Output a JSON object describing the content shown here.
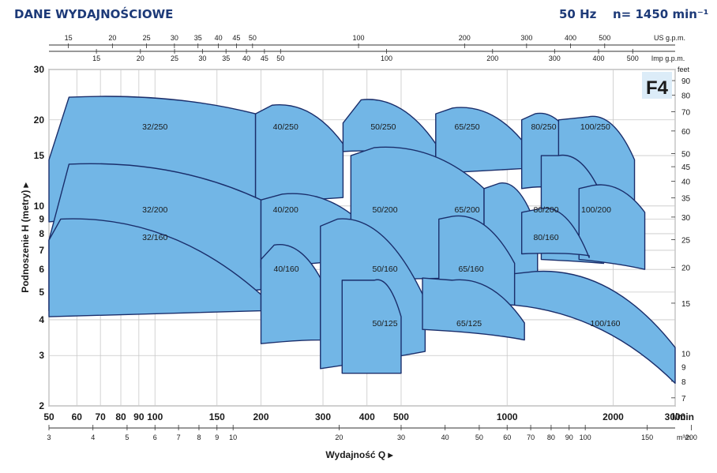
{
  "header": {
    "title": "DANE WYDAJNOŚCIOWE",
    "frequency": "50 Hz",
    "speed": "n= 1450 min⁻¹"
  },
  "chart_data": {
    "type": "area",
    "title": "F4",
    "ylabel": "Podnoszenie H (metry)",
    "xlabel": "Wydajność Q",
    "x_scale": "log",
    "y_scale": "log",
    "xlim": [
      50,
      3000
    ],
    "ylim": [
      2,
      30
    ],
    "x_unit": "l/min",
    "x_ticks": [
      50,
      60,
      70,
      80,
      90,
      100,
      150,
      200,
      300,
      400,
      500,
      1000,
      2000,
      3000
    ],
    "x_tick_labels": [
      "50",
      "60",
      "70",
      "80",
      "90",
      "100",
      "150",
      "200",
      "300",
      "400",
      "500",
      "1000",
      "2000",
      "3000"
    ],
    "y_ticks": [
      2,
      3,
      4,
      5,
      6,
      7,
      8,
      9,
      10,
      15,
      20,
      30
    ],
    "y_tick_labels": [
      "2",
      "3",
      "4",
      "5",
      "6",
      "7",
      "8",
      "9",
      "10",
      "15",
      "20",
      "30"
    ],
    "m3h_axis": {
      "unit": "m³/h",
      "ticks": [
        3,
        4,
        5,
        6,
        7,
        8,
        9,
        10,
        20,
        30,
        40,
        50,
        60,
        70,
        80,
        90,
        100,
        150,
        200
      ],
      "labels": [
        "3",
        "4",
        "5",
        "6",
        "7",
        "8",
        "9",
        "10",
        "20",
        "30",
        "40",
        "50",
        "60",
        "70",
        "80",
        "90",
        "100",
        "150",
        "200"
      ]
    },
    "us_gpm_axis": {
      "unit": "US g.p.m.",
      "ticks": [
        15,
        20,
        25,
        30,
        35,
        40,
        45,
        50,
        100,
        200,
        300,
        400,
        500
      ],
      "labels": [
        "15",
        "20",
        "25",
        "30",
        "35",
        "40",
        "45",
        "50",
        "100",
        "200",
        "300",
        "400",
        "500"
      ]
    },
    "imp_gpm_axis": {
      "unit": "Imp g.p.m.",
      "ticks": [
        15,
        20,
        25,
        30,
        35,
        40,
        45,
        50,
        100,
        200,
        300,
        400,
        500
      ],
      "labels": [
        "15",
        "20",
        "25",
        "30",
        "35",
        "40",
        "45",
        "50",
        "100",
        "200",
        "300",
        "400",
        "500"
      ]
    },
    "feet_axis": {
      "unit": "feet",
      "ticks": [
        7,
        8,
        9,
        10,
        15,
        20,
        25,
        30,
        35,
        40,
        45,
        50,
        60,
        70,
        80,
        90
      ],
      "labels": [
        "7",
        "8",
        "9",
        "10",
        "15",
        "20",
        "25",
        "30",
        "35",
        "40",
        "45",
        "50",
        "60",
        "70",
        "80",
        "90"
      ]
    },
    "series": [
      {
        "name": "32/250",
        "q": [
          50,
          57,
          193
        ],
        "h_top": [
          14.5,
          24,
          21
        ],
        "h_bottom": [
          8.8,
          9.5,
          10.2
        ]
      },
      {
        "name": "40/250",
        "q": [
          193,
          215,
          342
        ],
        "h_top": [
          21,
          22.5,
          16.5
        ],
        "h_bottom": [
          10.2,
          10.5,
          10.7
        ]
      },
      {
        "name": "50/250",
        "q": [
          342,
          385,
          627
        ],
        "h_top": [
          19.5,
          23.5,
          16.5
        ],
        "h_bottom": [
          15.5,
          16,
          13.5
        ]
      },
      {
        "name": "65/250",
        "q": [
          627,
          700,
          1100
        ],
        "h_top": [
          21,
          22,
          17
        ],
        "h_bottom": [
          13,
          13.3,
          13.5
        ]
      },
      {
        "name": "80/250",
        "q": [
          1100,
          1200,
          1580
        ],
        "h_top": [
          20,
          21,
          16
        ],
        "h_bottom": [
          11.5,
          12,
          11
        ]
      },
      {
        "name": "100/250",
        "q": [
          1400,
          1700,
          2300
        ],
        "h_top": [
          20,
          20.5,
          14.5
        ],
        "h_bottom": [
          11.2,
          11,
          10
        ]
      },
      {
        "name": "32/200",
        "q": [
          50,
          57,
          200
        ],
        "h_top": [
          7.6,
          14,
          10.5
        ],
        "h_bottom": [
          4.3,
          4.7,
          5.1
        ]
      },
      {
        "name": "40/200",
        "q": [
          200,
          230,
          395
        ],
        "h_top": [
          10.5,
          11,
          8.5
        ],
        "h_bottom": [
          6.1,
          6.3,
          6.6
        ]
      },
      {
        "name": "50/200",
        "q": [
          360,
          420,
          860
        ],
        "h_top": [
          15,
          16,
          11.5
        ],
        "h_bottom": [
          5.5,
          5.6,
          5.6
        ]
      },
      {
        "name": "65/200",
        "q": [
          860,
          950,
          1220
        ],
        "h_top": [
          11.5,
          12,
          8.2
        ],
        "h_bottom": [
          5.5,
          5.6,
          5.6
        ]
      },
      {
        "name": "80/200",
        "q": [
          1250,
          1400,
          1880
        ],
        "h_top": [
          15,
          15,
          10.5
        ],
        "h_bottom": [
          6.5,
          6.4,
          6.3
        ]
      },
      {
        "name": "100/200",
        "q": [
          1600,
          1750,
          2460
        ],
        "h_top": [
          11.5,
          11.8,
          9.5
        ],
        "h_bottom": [
          6.5,
          6.3,
          6
        ]
      },
      {
        "name": "32/160",
        "q": [
          50,
          54,
          200
        ],
        "h_top": [
          7.6,
          9,
          4.9
        ],
        "h_bottom": [
          4.1,
          4.2,
          4.3
        ]
      },
      {
        "name": "40/160",
        "q": [
          200,
          218,
          295
        ],
        "h_top": [
          6.5,
          7.3,
          5.6
        ],
        "h_bottom": [
          3.3,
          3.4,
          3.4
        ]
      },
      {
        "name": "50/160",
        "q": [
          295,
          330,
          585
        ],
        "h_top": [
          8.5,
          9,
          4.7
        ],
        "h_bottom": [
          2.7,
          2.9,
          3.1
        ]
      },
      {
        "name": "50/125",
        "q": [
          340,
          420,
          500
        ],
        "h_top": [
          5.5,
          5.5,
          4.1
        ],
        "h_bottom": [
          2.6,
          2.6,
          2.6
        ]
      },
      {
        "name": "65/160",
        "q": [
          640,
          700,
          1050
        ],
        "h_top": [
          9,
          9.2,
          6.3
        ],
        "h_bottom": [
          4.7,
          4.6,
          4.5
        ]
      },
      {
        "name": "65/125",
        "q": [
          575,
          700,
          1120
        ],
        "h_top": [
          5.6,
          5.5,
          3.9
        ],
        "h_bottom": [
          3.7,
          3.6,
          3.4
        ]
      },
      {
        "name": "80/160",
        "q": [
          1100,
          1250,
          1710
        ],
        "h_top": [
          9.5,
          9.8,
          6.6
        ],
        "h_bottom": [
          6.8,
          6.9,
          6.7
        ]
      },
      {
        "name": "100/160",
        "q": [
          1050,
          1200,
          3000
        ],
        "h_top": [
          5.8,
          5.9,
          3.2
        ],
        "h_bottom": [
          4.5,
          4.2,
          2.4
        ]
      }
    ],
    "labels_at": [
      {
        "name": "32/250",
        "q": 100,
        "h": 18.5
      },
      {
        "name": "40/250",
        "q": 235,
        "h": 18.5
      },
      {
        "name": "50/250",
        "q": 445,
        "h": 18.5
      },
      {
        "name": "65/250",
        "q": 770,
        "h": 18.5
      },
      {
        "name": "80/250",
        "q": 1270,
        "h": 18.5
      },
      {
        "name": "100/250",
        "q": 1780,
        "h": 18.5
      },
      {
        "name": "32/200",
        "q": 100,
        "h": 9.5
      },
      {
        "name": "40/200",
        "q": 235,
        "h": 9.5
      },
      {
        "name": "50/200",
        "q": 450,
        "h": 9.5
      },
      {
        "name": "65/200",
        "q": 770,
        "h": 9.5
      },
      {
        "name": "80/200",
        "q": 1290,
        "h": 9.5
      },
      {
        "name": "100/200",
        "q": 1790,
        "h": 9.5
      },
      {
        "name": "32/160",
        "q": 100,
        "h": 7.6
      },
      {
        "name": "80/160",
        "q": 1290,
        "h": 7.6
      },
      {
        "name": "40/160",
        "q": 236,
        "h": 5.9
      },
      {
        "name": "50/160",
        "q": 450,
        "h": 5.9
      },
      {
        "name": "65/160",
        "q": 790,
        "h": 5.9
      },
      {
        "name": "50/125",
        "q": 450,
        "h": 3.8
      },
      {
        "name": "65/125",
        "q": 780,
        "h": 3.8
      },
      {
        "name": "100/160",
        "q": 1900,
        "h": 3.8
      }
    ],
    "colors": {
      "fill": "#72b6e6",
      "stroke": "#1a2e6b",
      "text": "#1a1a1a",
      "title_fill": "#dcecf8"
    }
  }
}
